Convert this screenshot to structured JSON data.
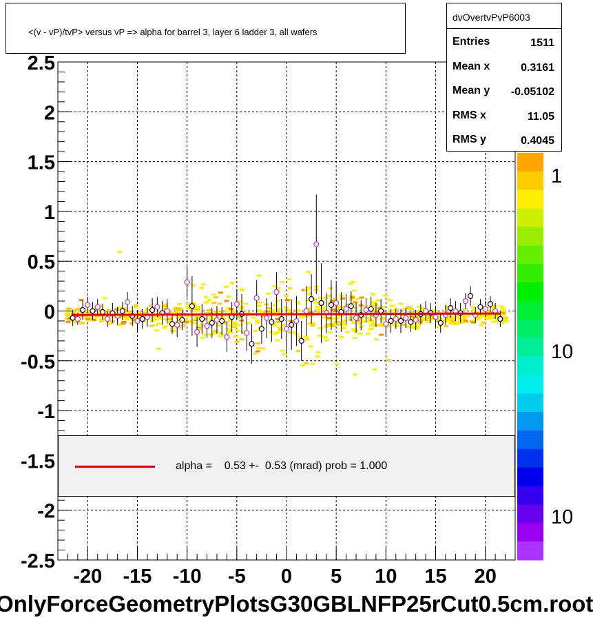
{
  "title": "<(v - vP)/tvP> versus   vP => alpha for barrel 3, layer 6 ladder 3, all wafers",
  "bottom_title": "OnlyForceGeometryPlotsG30GBLNFP25rCut0.5cm.root",
  "stats": {
    "name": "dvOvertvPvP6003",
    "rows": [
      {
        "label": "Entries",
        "value": "1511"
      },
      {
        "label": "Mean x",
        "value": "0.3161"
      },
      {
        "label": "Mean y",
        "value": "-0.05102"
      },
      {
        "label": "RMS x",
        "value": "11.05"
      },
      {
        "label": "RMS y",
        "value": "0.4045"
      }
    ]
  },
  "fit_legend": {
    "text": "alpha =    0.53 +-  0.53 (mrad) prob = 1.000",
    "line_color": "#ee0000"
  },
  "colorbar": {
    "labels": [
      "1",
      "10",
      "10"
    ],
    "colors": [
      "#ffa500",
      "#ffcc00",
      "#ffee00",
      "#ccee00",
      "#99ee00",
      "#66ee00",
      "#33ee00",
      "#00ee00",
      "#00ee33",
      "#00ee66",
      "#00ee99",
      "#00eecc",
      "#00eeee",
      "#00ccee",
      "#0099ee",
      "#0066ee",
      "#0033ee",
      "#0000ee",
      "#3300ee",
      "#6600ee",
      "#9900ee",
      "#aa33ff"
    ]
  },
  "chart_data": {
    "type": "scatter",
    "xlim": [
      -23,
      23
    ],
    "ylim": [
      -2.5,
      2.5
    ],
    "x_ticks": [
      -20,
      -15,
      -10,
      -5,
      0,
      5,
      10,
      15,
      20
    ],
    "x_tick_labels": [
      "-20",
      "-15",
      "-10",
      "-5",
      "0",
      "5",
      "10",
      "15",
      "20"
    ],
    "y_ticks": [
      -2.5,
      -2,
      -1.5,
      -1,
      -0.5,
      0,
      0.5,
      1,
      1.5,
      2,
      2.5
    ],
    "y_tick_labels": [
      "-2.5",
      "-2",
      "-1.5",
      "-1",
      "-0.5",
      "0",
      "0.5",
      "1",
      "1.5",
      "2",
      "2.5"
    ],
    "grid": true,
    "fit_line": {
      "x": [
        -21.5,
        21.5
      ],
      "y": [
        -0.04,
        -0.025
      ],
      "color": "#ee0000"
    },
    "series": [
      {
        "marker": "open-circle-black",
        "color": "#000000",
        "x": [
          -21.5,
          -20.5,
          -19.5,
          -18.5,
          -17.5,
          -16.5,
          -15.5,
          -14.5,
          -13.5,
          -12.5,
          -11.5,
          -10.5,
          -9.5,
          -8.5,
          -7.5,
          -6.5,
          -5.5,
          -4.5,
          -3.5,
          -2.5,
          -1.5,
          -0.5,
          0.5,
          1.5,
          2.5,
          3.5,
          4.5,
          5.5,
          6.5,
          7.5,
          8.5,
          9.5,
          10.5,
          11.5,
          12.5,
          13.5,
          14.5,
          15.5,
          16.5,
          17.5,
          18.5,
          19.5,
          20.5,
          21.5
        ],
        "y": [
          -0.07,
          0.01,
          0.0,
          -0.01,
          -0.02,
          0.0,
          -0.05,
          -0.08,
          0.01,
          -0.02,
          -0.13,
          -0.09,
          0.05,
          -0.08,
          -0.12,
          -0.1,
          -0.06,
          -0.03,
          -0.33,
          -0.18,
          -0.11,
          -0.08,
          -0.14,
          -0.3,
          0.12,
          0.08,
          0.06,
          -0.01,
          0.05,
          -0.04,
          0.02,
          0.0,
          -0.1,
          -0.1,
          -0.11,
          -0.03,
          -0.02,
          -0.12,
          0.03,
          -0.02,
          0.15,
          0.04,
          0.07,
          -0.08
        ],
        "err": [
          0.08,
          0.1,
          0.09,
          0.08,
          0.1,
          0.09,
          0.1,
          0.1,
          0.12,
          0.12,
          0.1,
          0.1,
          0.3,
          0.15,
          0.15,
          0.14,
          0.15,
          0.2,
          0.2,
          0.15,
          0.2,
          0.2,
          0.25,
          0.2,
          0.25,
          0.4,
          0.25,
          0.2,
          0.15,
          0.15,
          0.12,
          0.12,
          0.12,
          0.12,
          0.1,
          0.1,
          0.1,
          0.1,
          0.1,
          0.1,
          0.1,
          0.08,
          0.08,
          0.08
        ]
      },
      {
        "marker": "open-circle-magenta",
        "color": "#cc33cc",
        "x": [
          -21.0,
          -20.0,
          -19.0,
          -18.0,
          -17.0,
          -16.0,
          -15.0,
          -14.0,
          -13.0,
          -12.0,
          -11.0,
          -10.0,
          -9.0,
          -8.0,
          -7.0,
          -6.0,
          -5.0,
          -4.0,
          -3.0,
          -2.0,
          -1.0,
          0.0,
          1.0,
          2.0,
          3.0,
          4.0,
          5.0,
          6.0,
          7.0,
          8.0,
          9.0,
          10.0,
          11.0,
          12.0,
          13.0,
          14.0,
          15.0,
          16.0,
          17.0,
          18.0,
          19.0,
          20.0,
          21.0
        ],
        "y": [
          -0.08,
          0.06,
          0.04,
          -0.08,
          -0.05,
          0.09,
          -0.1,
          -0.06,
          0.04,
          0.0,
          -0.14,
          0.29,
          -0.21,
          -0.15,
          -0.09,
          -0.26,
          0.07,
          -0.22,
          0.13,
          -0.07,
          0.19,
          -0.18,
          -0.1,
          0.0,
          0.67,
          -0.02,
          0.08,
          0.02,
          -0.07,
          0.01,
          -0.04,
          -0.13,
          -0.08,
          -0.07,
          -0.09,
          0.0,
          -0.06,
          -0.04,
          0.0,
          0.1,
          -0.04,
          0.02,
          0.0
        ],
        "err": [
          0.06,
          0.08,
          0.08,
          0.08,
          0.09,
          0.1,
          0.1,
          0.1,
          0.1,
          0.12,
          0.12,
          0.15,
          0.15,
          0.12,
          0.14,
          0.15,
          0.15,
          0.18,
          0.18,
          0.2,
          0.2,
          0.25,
          0.25,
          0.25,
          0.5,
          0.2,
          0.2,
          0.15,
          0.15,
          0.12,
          0.12,
          0.12,
          0.1,
          0.1,
          0.1,
          0.1,
          0.1,
          0.1,
          0.1,
          0.08,
          0.08,
          0.08,
          0.08
        ]
      }
    ]
  }
}
